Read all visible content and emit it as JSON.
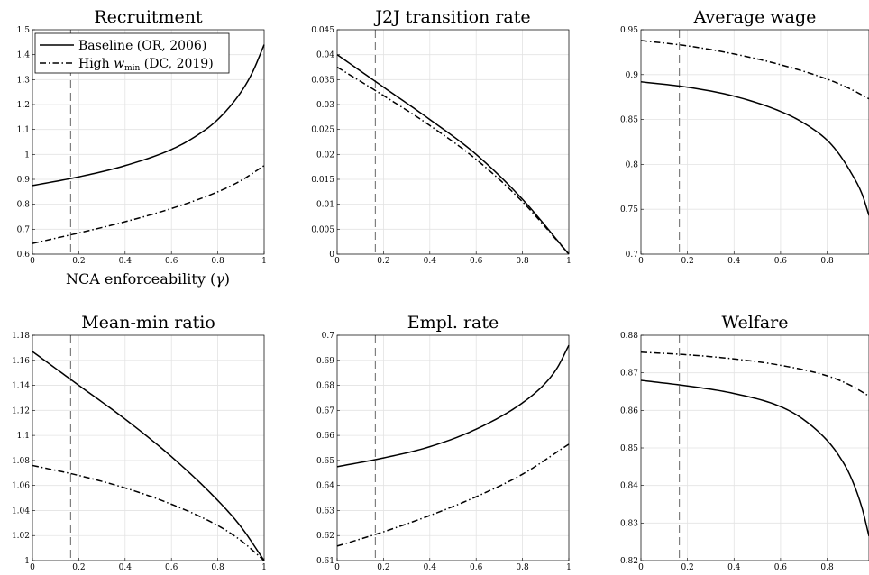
{
  "legend": {
    "baseline_label": "Baseline (OR, 2006)",
    "high_label_prefix": "High ",
    "high_label_var": "w",
    "high_label_sub": "min",
    "high_label_suffix": " (DC, 2019)",
    "placement": "top-left of first panel"
  },
  "xlabel_text": "NCA enforceability (",
  "xlabel_symbol": "γ",
  "xlabel_close": ")",
  "colors": {
    "baseline": "#000000",
    "high_wmin": "#000000",
    "marker": "#7f7f7f",
    "grid": "#e3e3e3"
  },
  "chart_data": [
    {
      "type": "line",
      "title": "Recruitment",
      "xlabel": "NCA enforceability (γ)",
      "xlim": [
        0,
        1
      ],
      "ylim": [
        0.6,
        1.5
      ],
      "xticks": [
        "0",
        "0.2",
        "0.4",
        "0.6",
        "0.8",
        "1"
      ],
      "yticks": [
        "0.6",
        "0.7",
        "0.8",
        "0.9",
        "1",
        "1.1",
        "1.2",
        "1.3",
        "1.4",
        "1.5"
      ],
      "grid": true,
      "vline": 0.165,
      "series": [
        {
          "name": "Baseline (OR, 2006)",
          "style": "solid",
          "x": [
            0,
            0.2,
            0.4,
            0.6,
            0.7,
            0.8,
            0.9,
            0.95,
            1.0
          ],
          "y": [
            0.875,
            0.91,
            0.955,
            1.02,
            1.07,
            1.14,
            1.25,
            1.33,
            1.44
          ]
        },
        {
          "name": "High w_min (DC, 2019)",
          "style": "dashdot",
          "x": [
            0,
            0.2,
            0.4,
            0.6,
            0.8,
            0.9,
            1.0
          ],
          "y": [
            0.643,
            0.685,
            0.73,
            0.783,
            0.85,
            0.895,
            0.955
          ]
        }
      ]
    },
    {
      "type": "line",
      "title": "J2J transition rate",
      "xlabel": "",
      "xlim": [
        0,
        1
      ],
      "ylim": [
        0,
        0.045
      ],
      "xticks": [
        "0",
        "0.2",
        "0.4",
        "0.6",
        "0.8",
        "1"
      ],
      "yticks": [
        "0",
        "0.005",
        "0.01",
        "0.015",
        "0.02",
        "0.025",
        "0.03",
        "0.035",
        "0.04",
        "0.045"
      ],
      "grid": true,
      "vline": 0.165,
      "series": [
        {
          "name": "Baseline (OR, 2006)",
          "style": "solid",
          "x": [
            0,
            0.2,
            0.4,
            0.6,
            0.8,
            1.0
          ],
          "y": [
            0.04,
            0.0335,
            0.027,
            0.02,
            0.011,
            0
          ]
        },
        {
          "name": "High w_min (DC, 2019)",
          "style": "dashdot",
          "x": [
            0,
            0.2,
            0.4,
            0.6,
            0.8,
            1.0
          ],
          "y": [
            0.0375,
            0.0318,
            0.0258,
            0.019,
            0.0105,
            0
          ]
        }
      ]
    },
    {
      "type": "line",
      "title": "Average wage",
      "xlabel": "",
      "xlim": [
        0,
        0.98
      ],
      "ylim": [
        0.7,
        0.95
      ],
      "xticks": [
        "0",
        "0.2",
        "0.4",
        "0.6",
        "0.8"
      ],
      "yticks": [
        "0.7",
        "0.75",
        "0.8",
        "0.85",
        "0.9",
        "0.95"
      ],
      "grid": true,
      "vline": 0.165,
      "series": [
        {
          "name": "Baseline (OR, 2006)",
          "style": "solid",
          "x": [
            0,
            0.2,
            0.4,
            0.6,
            0.7,
            0.8,
            0.85,
            0.9,
            0.95,
            0.98
          ],
          "y": [
            0.892,
            0.886,
            0.876,
            0.859,
            0.846,
            0.827,
            0.812,
            0.792,
            0.767,
            0.743
          ]
        },
        {
          "name": "High w_min (DC, 2019)",
          "style": "dashdot",
          "x": [
            0,
            0.2,
            0.4,
            0.6,
            0.8,
            0.9,
            0.98
          ],
          "y": [
            0.938,
            0.932,
            0.923,
            0.911,
            0.895,
            0.884,
            0.873
          ]
        }
      ]
    },
    {
      "type": "line",
      "title": "Mean-min ratio",
      "xlabel": "",
      "xlim": [
        0,
        1
      ],
      "ylim": [
        1,
        1.18
      ],
      "xticks": [
        "0",
        "0.2",
        "0.4",
        "0.6",
        "0.8",
        "1"
      ],
      "yticks": [
        "1",
        "1.02",
        "1.04",
        "1.06",
        "1.08",
        "1.1",
        "1.12",
        "1.14",
        "1.16",
        "1.18"
      ],
      "grid": true,
      "vline": 0.165,
      "series": [
        {
          "name": "Baseline (OR, 2006)",
          "style": "solid",
          "x": [
            0,
            0.2,
            0.4,
            0.6,
            0.8,
            0.9,
            1.0
          ],
          "y": [
            1.167,
            1.14,
            1.113,
            1.083,
            1.048,
            1.027,
            1.0
          ]
        },
        {
          "name": "High w_min (DC, 2019)",
          "style": "dashdot",
          "x": [
            0,
            0.2,
            0.4,
            0.6,
            0.8,
            0.9,
            1.0
          ],
          "y": [
            1.076,
            1.068,
            1.058,
            1.045,
            1.028,
            1.016,
            1.0
          ]
        }
      ]
    },
    {
      "type": "line",
      "title": "Empl. rate",
      "xlabel": "",
      "xlim": [
        0,
        1
      ],
      "ylim": [
        0.61,
        0.7
      ],
      "xticks": [
        "0",
        "0.2",
        "0.4",
        "0.6",
        "0.8",
        "1"
      ],
      "yticks": [
        "0.61",
        "0.62",
        "0.63",
        "0.64",
        "0.65",
        "0.66",
        "0.67",
        "0.68",
        "0.69",
        "0.7"
      ],
      "grid": true,
      "vline": 0.165,
      "series": [
        {
          "name": "Baseline (OR, 2006)",
          "style": "solid",
          "x": [
            0,
            0.2,
            0.4,
            0.6,
            0.8,
            0.9,
            0.95,
            1.0
          ],
          "y": [
            0.6475,
            0.651,
            0.6555,
            0.6625,
            0.673,
            0.681,
            0.687,
            0.696
          ]
        },
        {
          "name": "High w_min (DC, 2019)",
          "style": "dashdot",
          "x": [
            0,
            0.2,
            0.4,
            0.6,
            0.8,
            1.0
          ],
          "y": [
            0.6158,
            0.6215,
            0.628,
            0.6355,
            0.6445,
            0.6565
          ]
        }
      ]
    },
    {
      "type": "line",
      "title": "Welfare",
      "xlabel": "",
      "xlim": [
        0,
        0.98
      ],
      "ylim": [
        0.82,
        0.88
      ],
      "xticks": [
        "0",
        "0.2",
        "0.4",
        "0.6",
        "0.8"
      ],
      "yticks": [
        "0.82",
        "0.83",
        "0.84",
        "0.85",
        "0.86",
        "0.87",
        "0.88"
      ],
      "grid": true,
      "vline": 0.165,
      "series": [
        {
          "name": "Baseline (OR, 2006)",
          "style": "solid",
          "x": [
            0,
            0.2,
            0.4,
            0.6,
            0.7,
            0.8,
            0.85,
            0.9,
            0.95,
            0.98
          ],
          "y": [
            0.868,
            0.8665,
            0.8645,
            0.861,
            0.8575,
            0.852,
            0.848,
            0.8425,
            0.834,
            0.8265
          ]
        },
        {
          "name": "High w_min (DC, 2019)",
          "style": "dashdot",
          "x": [
            0,
            0.2,
            0.4,
            0.6,
            0.8,
            0.9,
            0.98
          ],
          "y": [
            0.8755,
            0.8748,
            0.8737,
            0.872,
            0.8692,
            0.8667,
            0.8638
          ]
        }
      ]
    }
  ]
}
